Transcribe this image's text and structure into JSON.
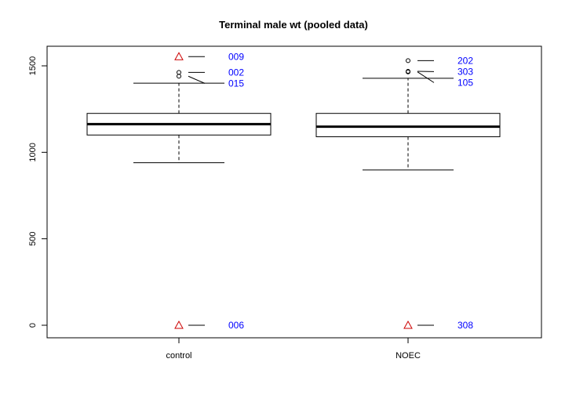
{
  "chart_data": {
    "type": "boxplot",
    "title": "Terminal male wt (pooled data)",
    "xlabel": "",
    "ylabel": "",
    "categories": [
      "control",
      "NOEC"
    ],
    "ylim": [
      -40,
      1600
    ],
    "y_ticks": [
      0,
      500,
      1000,
      1500
    ],
    "grid": false,
    "colors": {
      "box": "#000000",
      "flagged_marker": "#cc0000",
      "label_text": "#0000ff"
    },
    "boxes": [
      {
        "category": "control",
        "whisker_low": 940,
        "q1": 1100,
        "median": 1163,
        "q3": 1225,
        "whisker_high": 1400,
        "outliers": [
          {
            "value": 1553,
            "label": "009",
            "marker": "triangle"
          },
          {
            "value": 1462,
            "label": "002",
            "marker": "circle"
          },
          {
            "value": 1440,
            "label": "015",
            "marker": "circle"
          },
          {
            "value": 0,
            "label": "006",
            "marker": "triangle"
          }
        ]
      },
      {
        "category": "NOEC",
        "whisker_low": 898,
        "q1": 1090,
        "median": 1148,
        "q3": 1225,
        "whisker_high": 1428,
        "outliers": [
          {
            "value": 1530,
            "label": "202",
            "marker": "circle"
          },
          {
            "value": 1468,
            "label": "303",
            "marker": "circle"
          },
          {
            "value": 1465,
            "label": "105",
            "marker": "circle"
          },
          {
            "value": 0,
            "label": "308",
            "marker": "triangle"
          }
        ]
      }
    ]
  }
}
